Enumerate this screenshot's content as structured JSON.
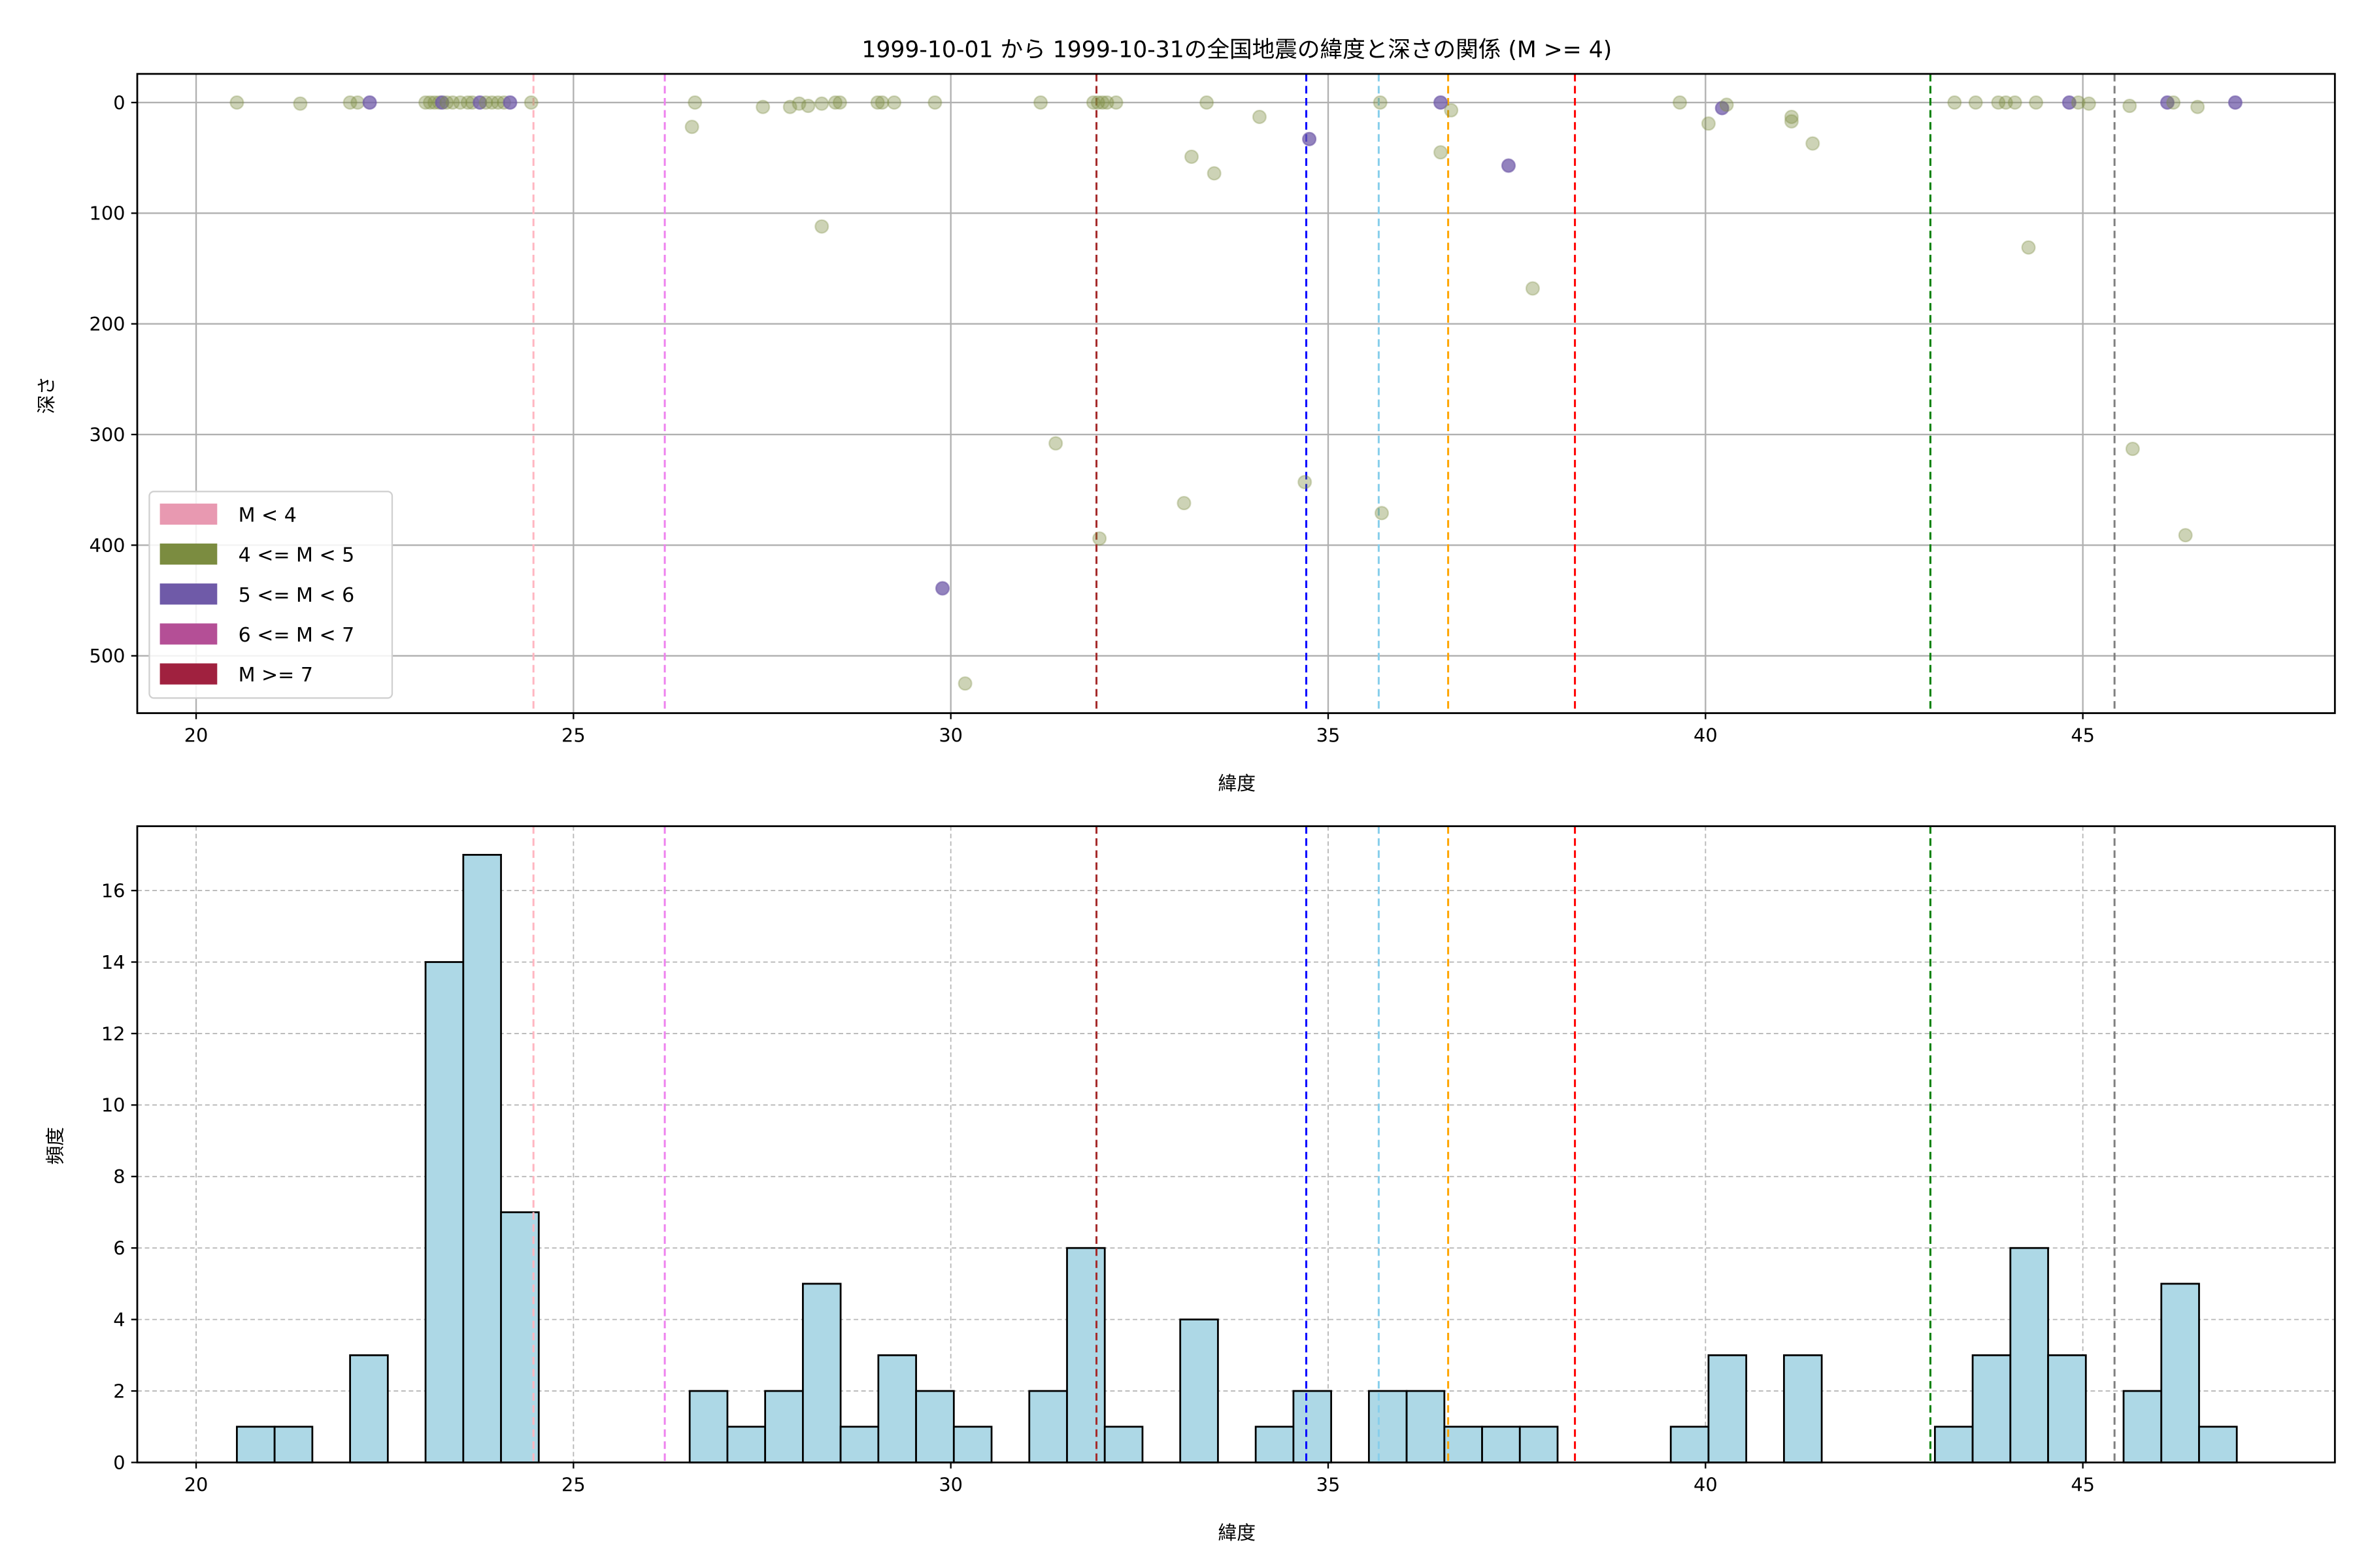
{
  "chart_data": [
    {
      "type": "scatter",
      "title": "1999-10-01 から 1999-10-31の全国地震の緯度と深さの関係 (M >= 4)",
      "xlabel": "緯度",
      "ylabel": "深さ",
      "xlim": [
        19.22,
        48.34
      ],
      "ylim": [
        551.8,
        -25.9
      ],
      "y_inverted": true,
      "xticks": [
        20,
        25,
        30,
        35,
        40,
        45
      ],
      "yticks": [
        0,
        100,
        200,
        300,
        400,
        500
      ],
      "grid": true,
      "legend": {
        "placement": "lower-left",
        "entries": [
          {
            "label": "M < 4",
            "color": "#e899b1"
          },
          {
            "label": "4 <= M < 5",
            "color": "#7b8c40"
          },
          {
            "label": "5 <= M < 6",
            "color": "#6f5aa8"
          },
          {
            "label": "6 <= M < 7",
            "color": "#b44f96"
          },
          {
            "label": "M >= 7",
            "color": "#a0213f"
          }
        ]
      },
      "points": [
        [
          20.54,
          0,
          1
        ],
        [
          21.38,
          1,
          1
        ],
        [
          22.04,
          0,
          1
        ],
        [
          22.14,
          0,
          1
        ],
        [
          22.3,
          0,
          2
        ],
        [
          23.04,
          0,
          1
        ],
        [
          23.1,
          0,
          1
        ],
        [
          23.16,
          0,
          1
        ],
        [
          23.22,
          0,
          1
        ],
        [
          23.26,
          0,
          2
        ],
        [
          23.32,
          0,
          1
        ],
        [
          23.4,
          0,
          1
        ],
        [
          23.5,
          0,
          1
        ],
        [
          23.6,
          0,
          1
        ],
        [
          23.66,
          0,
          1
        ],
        [
          23.76,
          0,
          2
        ],
        [
          23.84,
          0,
          1
        ],
        [
          23.92,
          0,
          1
        ],
        [
          24.0,
          0,
          1
        ],
        [
          24.08,
          0,
          1
        ],
        [
          24.16,
          0,
          2
        ],
        [
          24.44,
          0,
          1
        ],
        [
          26.61,
          0,
          1
        ],
        [
          26.57,
          22,
          1
        ],
        [
          27.51,
          4,
          1
        ],
        [
          27.87,
          4,
          1
        ],
        [
          27.99,
          1,
          1
        ],
        [
          28.11,
          3,
          1
        ],
        [
          28.29,
          1,
          1
        ],
        [
          28.47,
          0,
          1
        ],
        [
          28.53,
          0,
          1
        ],
        [
          28.29,
          112,
          1
        ],
        [
          29.03,
          0,
          1
        ],
        [
          29.09,
          0,
          1
        ],
        [
          29.25,
          0,
          1
        ],
        [
          29.79,
          0,
          1
        ],
        [
          29.89,
          439,
          2
        ],
        [
          30.19,
          525,
          1
        ],
        [
          31.19,
          0,
          1
        ],
        [
          31.39,
          308,
          1
        ],
        [
          31.89,
          0,
          1
        ],
        [
          31.95,
          0,
          1
        ],
        [
          32.01,
          0,
          1
        ],
        [
          32.07,
          0,
          1
        ],
        [
          32.19,
          0,
          1
        ],
        [
          31.97,
          394,
          1
        ],
        [
          33.19,
          49,
          1
        ],
        [
          33.49,
          64,
          1
        ],
        [
          33.39,
          0,
          1
        ],
        [
          33.09,
          362,
          1
        ],
        [
          34.09,
          13,
          1
        ],
        [
          34.75,
          33,
          2
        ],
        [
          34.69,
          343,
          1
        ],
        [
          35.69,
          0,
          1
        ],
        [
          35.71,
          371,
          1
        ],
        [
          36.49,
          0,
          2
        ],
        [
          36.63,
          7,
          1
        ],
        [
          36.49,
          45,
          1
        ],
        [
          37.39,
          57,
          2
        ],
        [
          37.71,
          168,
          1
        ],
        [
          39.66,
          0,
          1
        ],
        [
          40.04,
          19,
          1
        ],
        [
          40.22,
          5,
          2
        ],
        [
          40.28,
          2,
          1
        ],
        [
          41.14,
          13,
          1
        ],
        [
          41.14,
          17,
          1
        ],
        [
          41.42,
          37,
          1
        ],
        [
          43.3,
          0,
          1
        ],
        [
          43.58,
          0,
          1
        ],
        [
          43.88,
          0,
          1
        ],
        [
          43.98,
          0,
          1
        ],
        [
          44.1,
          0,
          1
        ],
        [
          44.38,
          0,
          1
        ],
        [
          44.28,
          131,
          1
        ],
        [
          44.82,
          0,
          2
        ],
        [
          44.94,
          0,
          1
        ],
        [
          45.08,
          1,
          1
        ],
        [
          45.62,
          3,
          1
        ],
        [
          45.66,
          313,
          1
        ],
        [
          46.12,
          0,
          2
        ],
        [
          46.2,
          0,
          1
        ],
        [
          46.52,
          4,
          1
        ],
        [
          46.36,
          391,
          1
        ],
        [
          47.02,
          0,
          2
        ]
      ]
    },
    {
      "type": "bar",
      "subtype": "histogram",
      "xlabel": "緯度",
      "ylabel": "頻度",
      "xlim": [
        19.22,
        48.34
      ],
      "ylim": [
        0,
        17.8
      ],
      "xticks": [
        20,
        25,
        30,
        35,
        40,
        45
      ],
      "yticks": [
        0,
        2,
        4,
        6,
        8,
        10,
        12,
        14,
        16
      ],
      "grid": true,
      "bin_start": 20.54,
      "bin_width": 0.5,
      "counts": [
        1,
        1,
        0,
        3,
        0,
        14,
        17,
        7,
        0,
        0,
        0,
        0,
        2,
        1,
        2,
        5,
        1,
        3,
        2,
        1,
        0,
        2,
        6,
        1,
        0,
        4,
        0,
        1,
        2,
        0,
        2,
        2,
        1,
        1,
        1,
        0,
        0,
        0,
        1,
        3,
        0,
        3,
        0,
        0,
        0,
        1,
        3,
        6,
        3,
        0,
        2,
        5,
        1
      ],
      "bar_color": "#add8e6"
    }
  ],
  "reference_lines": [
    {
      "lat": 24.47,
      "color": "#ffb6c1"
    },
    {
      "lat": 26.21,
      "color": "#ee82ee"
    },
    {
      "lat": 31.93,
      "color": "#a52a2a"
    },
    {
      "lat": 34.71,
      "color": "#0000ff"
    },
    {
      "lat": 35.67,
      "color": "#87ceeb"
    },
    {
      "lat": 36.59,
      "color": "#ffa500"
    },
    {
      "lat": 38.27,
      "color": "#ff0000"
    },
    {
      "lat": 42.98,
      "color": "#008000"
    },
    {
      "lat": 45.42,
      "color": "#808080"
    }
  ]
}
